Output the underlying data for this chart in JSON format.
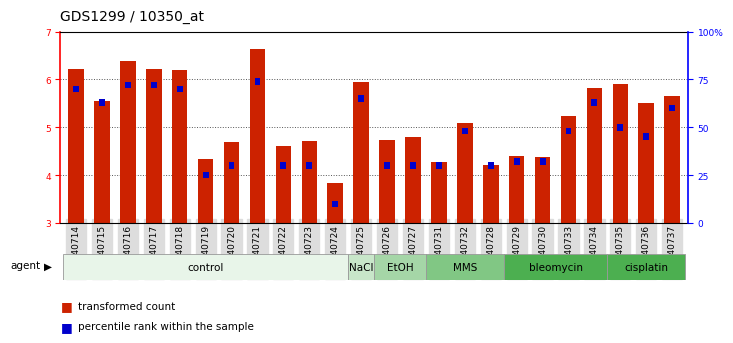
{
  "title": "GDS1299 / 10350_at",
  "samples": [
    "GSM40714",
    "GSM40715",
    "GSM40716",
    "GSM40717",
    "GSM40718",
    "GSM40719",
    "GSM40720",
    "GSM40721",
    "GSM40722",
    "GSM40723",
    "GSM40724",
    "GSM40725",
    "GSM40726",
    "GSM40727",
    "GSM40731",
    "GSM40732",
    "GSM40728",
    "GSM40729",
    "GSM40730",
    "GSM40733",
    "GSM40734",
    "GSM40735",
    "GSM40736",
    "GSM40737"
  ],
  "red_values": [
    6.22,
    5.54,
    6.38,
    6.22,
    6.19,
    4.33,
    4.7,
    6.64,
    4.61,
    4.72,
    3.84,
    5.94,
    4.73,
    4.79,
    4.28,
    5.08,
    4.21,
    4.39,
    4.37,
    5.24,
    5.83,
    5.91,
    5.5,
    5.65
  ],
  "blue_percentiles": [
    70,
    63,
    72,
    72,
    70,
    25,
    30,
    74,
    30,
    30,
    10,
    65,
    30,
    30,
    30,
    48,
    30,
    32,
    32,
    48,
    63,
    50,
    45,
    60
  ],
  "agents": [
    {
      "label": "control",
      "start": 0,
      "end": 11,
      "color": "#e8f5e9"
    },
    {
      "label": "NaCl",
      "start": 11,
      "end": 12,
      "color": "#c8e6c9"
    },
    {
      "label": "EtOH",
      "start": 12,
      "end": 14,
      "color": "#a5d6a7"
    },
    {
      "label": "MMS",
      "start": 14,
      "end": 17,
      "color": "#81c784"
    },
    {
      "label": "bleomycin",
      "start": 17,
      "end": 21,
      "color": "#4caf50"
    },
    {
      "label": "cisplatin",
      "start": 21,
      "end": 24,
      "color": "#4caf50"
    }
  ],
  "ylim_left": [
    3,
    7
  ],
  "ylim_right": [
    0,
    100
  ],
  "yticks_left": [
    3,
    4,
    5,
    6,
    7
  ],
  "yticks_right": [
    0,
    25,
    50,
    75,
    100
  ],
  "bar_color": "#cc2200",
  "blue_color": "#0000cc",
  "grid_color": "#555555",
  "bar_width": 0.6,
  "tick_fontsize": 6.5,
  "title_fontsize": 10,
  "agent_fontsize": 7.5,
  "legend_fontsize": 7.5
}
